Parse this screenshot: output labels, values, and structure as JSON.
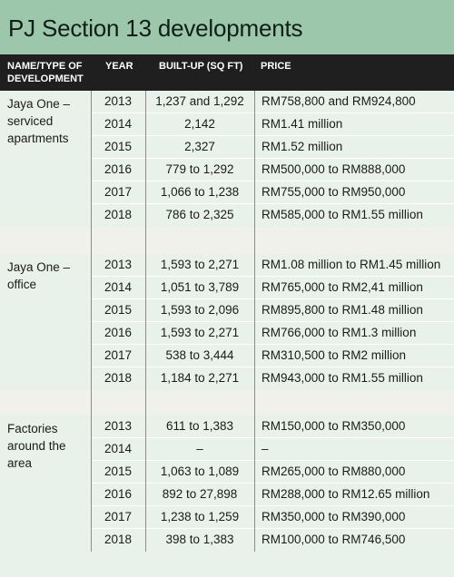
{
  "title": "PJ Section 13 developments",
  "headers": {
    "name": "NAME/TYPE OF DEVELOPMENT",
    "year": "YEAR",
    "built_up": "BUILT-UP (SQ FT)",
    "price": "PRICE"
  },
  "groups": [
    {
      "name": "Jaya One – serviced apartments",
      "rows": [
        {
          "year": "2013",
          "built_up": "1,237 and 1,292",
          "price": "RM758,800 and RM924,800"
        },
        {
          "year": "2014",
          "built_up": "2,142",
          "price": "RM1.41 million"
        },
        {
          "year": "2015",
          "built_up": "2,327",
          "price": "RM1.52 million"
        },
        {
          "year": "2016",
          "built_up": "779 to 1,292",
          "price": "RM500,000 to RM888,000"
        },
        {
          "year": "2017",
          "built_up": "1,066 to 1,238",
          "price": "RM755,000 to RM950,000"
        },
        {
          "year": "2018",
          "built_up": "786 to 2,325",
          "price": "RM585,000 to RM1.55 million"
        }
      ]
    },
    {
      "name": "Jaya One – office",
      "rows": [
        {
          "year": "2013",
          "built_up": "1,593 to 2,271",
          "price": "RM1.08 million to RM1.45 million"
        },
        {
          "year": "2014",
          "built_up": "1,051 to 3,789",
          "price": "RM765,000 to RM2,41 million"
        },
        {
          "year": "2015",
          "built_up": "1,593 to 2,096",
          "price": "RM895,800 to RM1.48 million"
        },
        {
          "year": "2016",
          "built_up": "1,593 to 2,271",
          "price": "RM766,000 to RM1.3 million"
        },
        {
          "year": "2017",
          "built_up": "538 to 3,444",
          "price": "RM310,500 to RM2 million"
        },
        {
          "year": "2018",
          "built_up": "1,184 to 2,271",
          "price": "RM943,000 to RM1.55 million"
        }
      ]
    },
    {
      "name": "Factories around the area",
      "rows": [
        {
          "year": "2013",
          "built_up": "611 to 1,383",
          "price": "RM150,000 to RM350,000"
        },
        {
          "year": "2014",
          "built_up": "–",
          "price": "–"
        },
        {
          "year": "2015",
          "built_up": "1,063 to 1,089",
          "price": "RM265,000 to RM880,000"
        },
        {
          "year": "2016",
          "built_up": "892 to 27,898",
          "price": "RM288,000 to RM12.65 million"
        },
        {
          "year": "2017",
          "built_up": "1,238 to 1,259",
          "price": "RM350,000 to RM390,000"
        },
        {
          "year": "2018",
          "built_up": "398 to 1,383",
          "price": "RM100,000 to RM746,500"
        }
      ]
    }
  ]
}
